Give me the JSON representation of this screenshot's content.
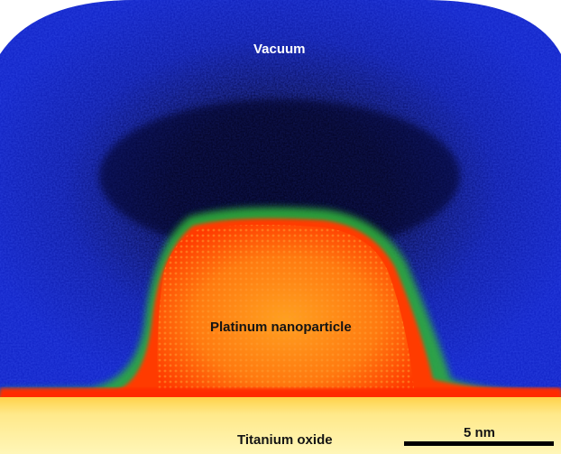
{
  "labels": {
    "vacuum": "Vacuum",
    "particle": "Platinum nanoparticle",
    "substrate": "Titanium oxide",
    "scale": "5 nm"
  },
  "colors": {
    "vacuum_dark": "#05052a",
    "vacuum_blue": "#0d1fc4",
    "halo_green": "#2fae3a",
    "particle_core": "#ff7a10",
    "particle_edge": "#ff3a00",
    "substrate_top": "#ff2a05",
    "substrate": "#ffe98a",
    "substrate_light": "#fff6b8",
    "background": "#ffffff",
    "scale_bar": "#000000"
  }
}
